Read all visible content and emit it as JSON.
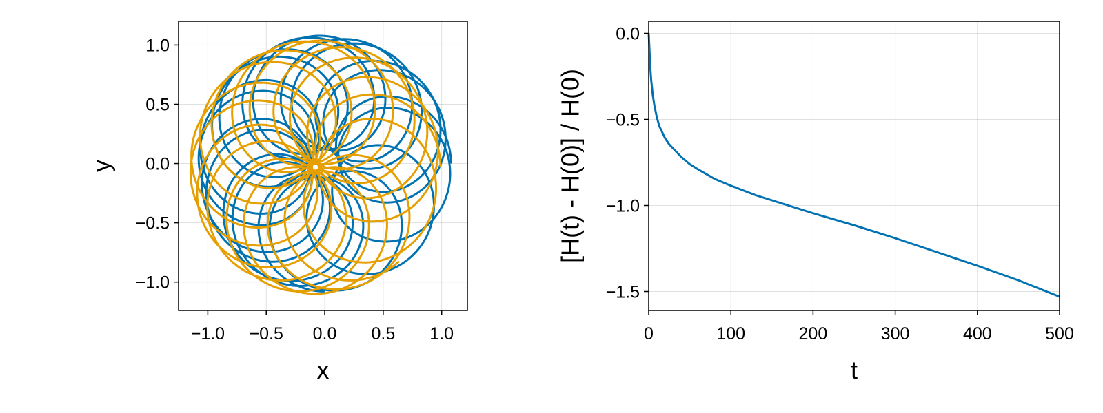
{
  "chart_data": [
    {
      "type": "line",
      "xlabel": "x",
      "ylabel": "y",
      "xlim": [
        -1.25,
        1.22
      ],
      "ylim": [
        -1.24,
        1.2
      ],
      "xticks": [
        -1.0,
        -0.5,
        0.0,
        0.5,
        1.0
      ],
      "xtick_labels": [
        "−1.0",
        "−0.5",
        "0.0",
        "0.5",
        "1.0"
      ],
      "yticks": [
        -1.0,
        -0.5,
        0.0,
        0.5,
        1.0
      ],
      "ytick_labels": [
        "−1.0",
        "−0.5",
        "0.0",
        "0.5",
        "1.0"
      ],
      "grid": true,
      "series": [
        {
          "color": "#0072b2",
          "trajectory": {
            "kind": "rosette",
            "center": [
              0.0,
              0.0
            ],
            "orbit_radius": 0.6,
            "loop_radius": 0.48,
            "precession_step_deg": 35,
            "loops": 18
          }
        },
        {
          "color": "#e69f00",
          "trajectory": {
            "kind": "rosette",
            "center": [
              -0.08,
              -0.03
            ],
            "orbit_radius": 0.55,
            "loop_radius": 0.52,
            "precession_step_deg": 42,
            "loops": 16
          }
        }
      ]
    },
    {
      "type": "line",
      "xlabel": "t",
      "ylabel": "[H(t) - H(0)] / H(0)",
      "xlim": [
        0,
        500
      ],
      "ylim": [
        -1.61,
        0.07
      ],
      "xticks": [
        0,
        100,
        200,
        300,
        400,
        500
      ],
      "xtick_labels": [
        "0",
        "100",
        "200",
        "300",
        "400",
        "500"
      ],
      "yticks": [
        0.0,
        -0.5,
        -1.0,
        -1.5
      ],
      "ytick_labels": [
        "0.0",
        "−0.5",
        "−1.0",
        "−1.5"
      ],
      "grid": true,
      "series": [
        {
          "color": "#0072b2",
          "x": [
            0,
            1,
            2,
            3,
            5,
            7,
            10,
            13,
            16,
            20,
            25,
            30,
            40,
            50,
            60,
            80,
            100,
            130,
            160,
            200,
            250,
            300,
            350,
            400,
            450,
            500
          ],
          "y": [
            0.0,
            -0.1,
            -0.2,
            -0.27,
            -0.36,
            -0.42,
            -0.49,
            -0.54,
            -0.57,
            -0.61,
            -0.645,
            -0.67,
            -0.72,
            -0.76,
            -0.79,
            -0.845,
            -0.885,
            -0.94,
            -0.985,
            -1.045,
            -1.115,
            -1.19,
            -1.27,
            -1.35,
            -1.435,
            -1.53
          ]
        }
      ]
    }
  ]
}
